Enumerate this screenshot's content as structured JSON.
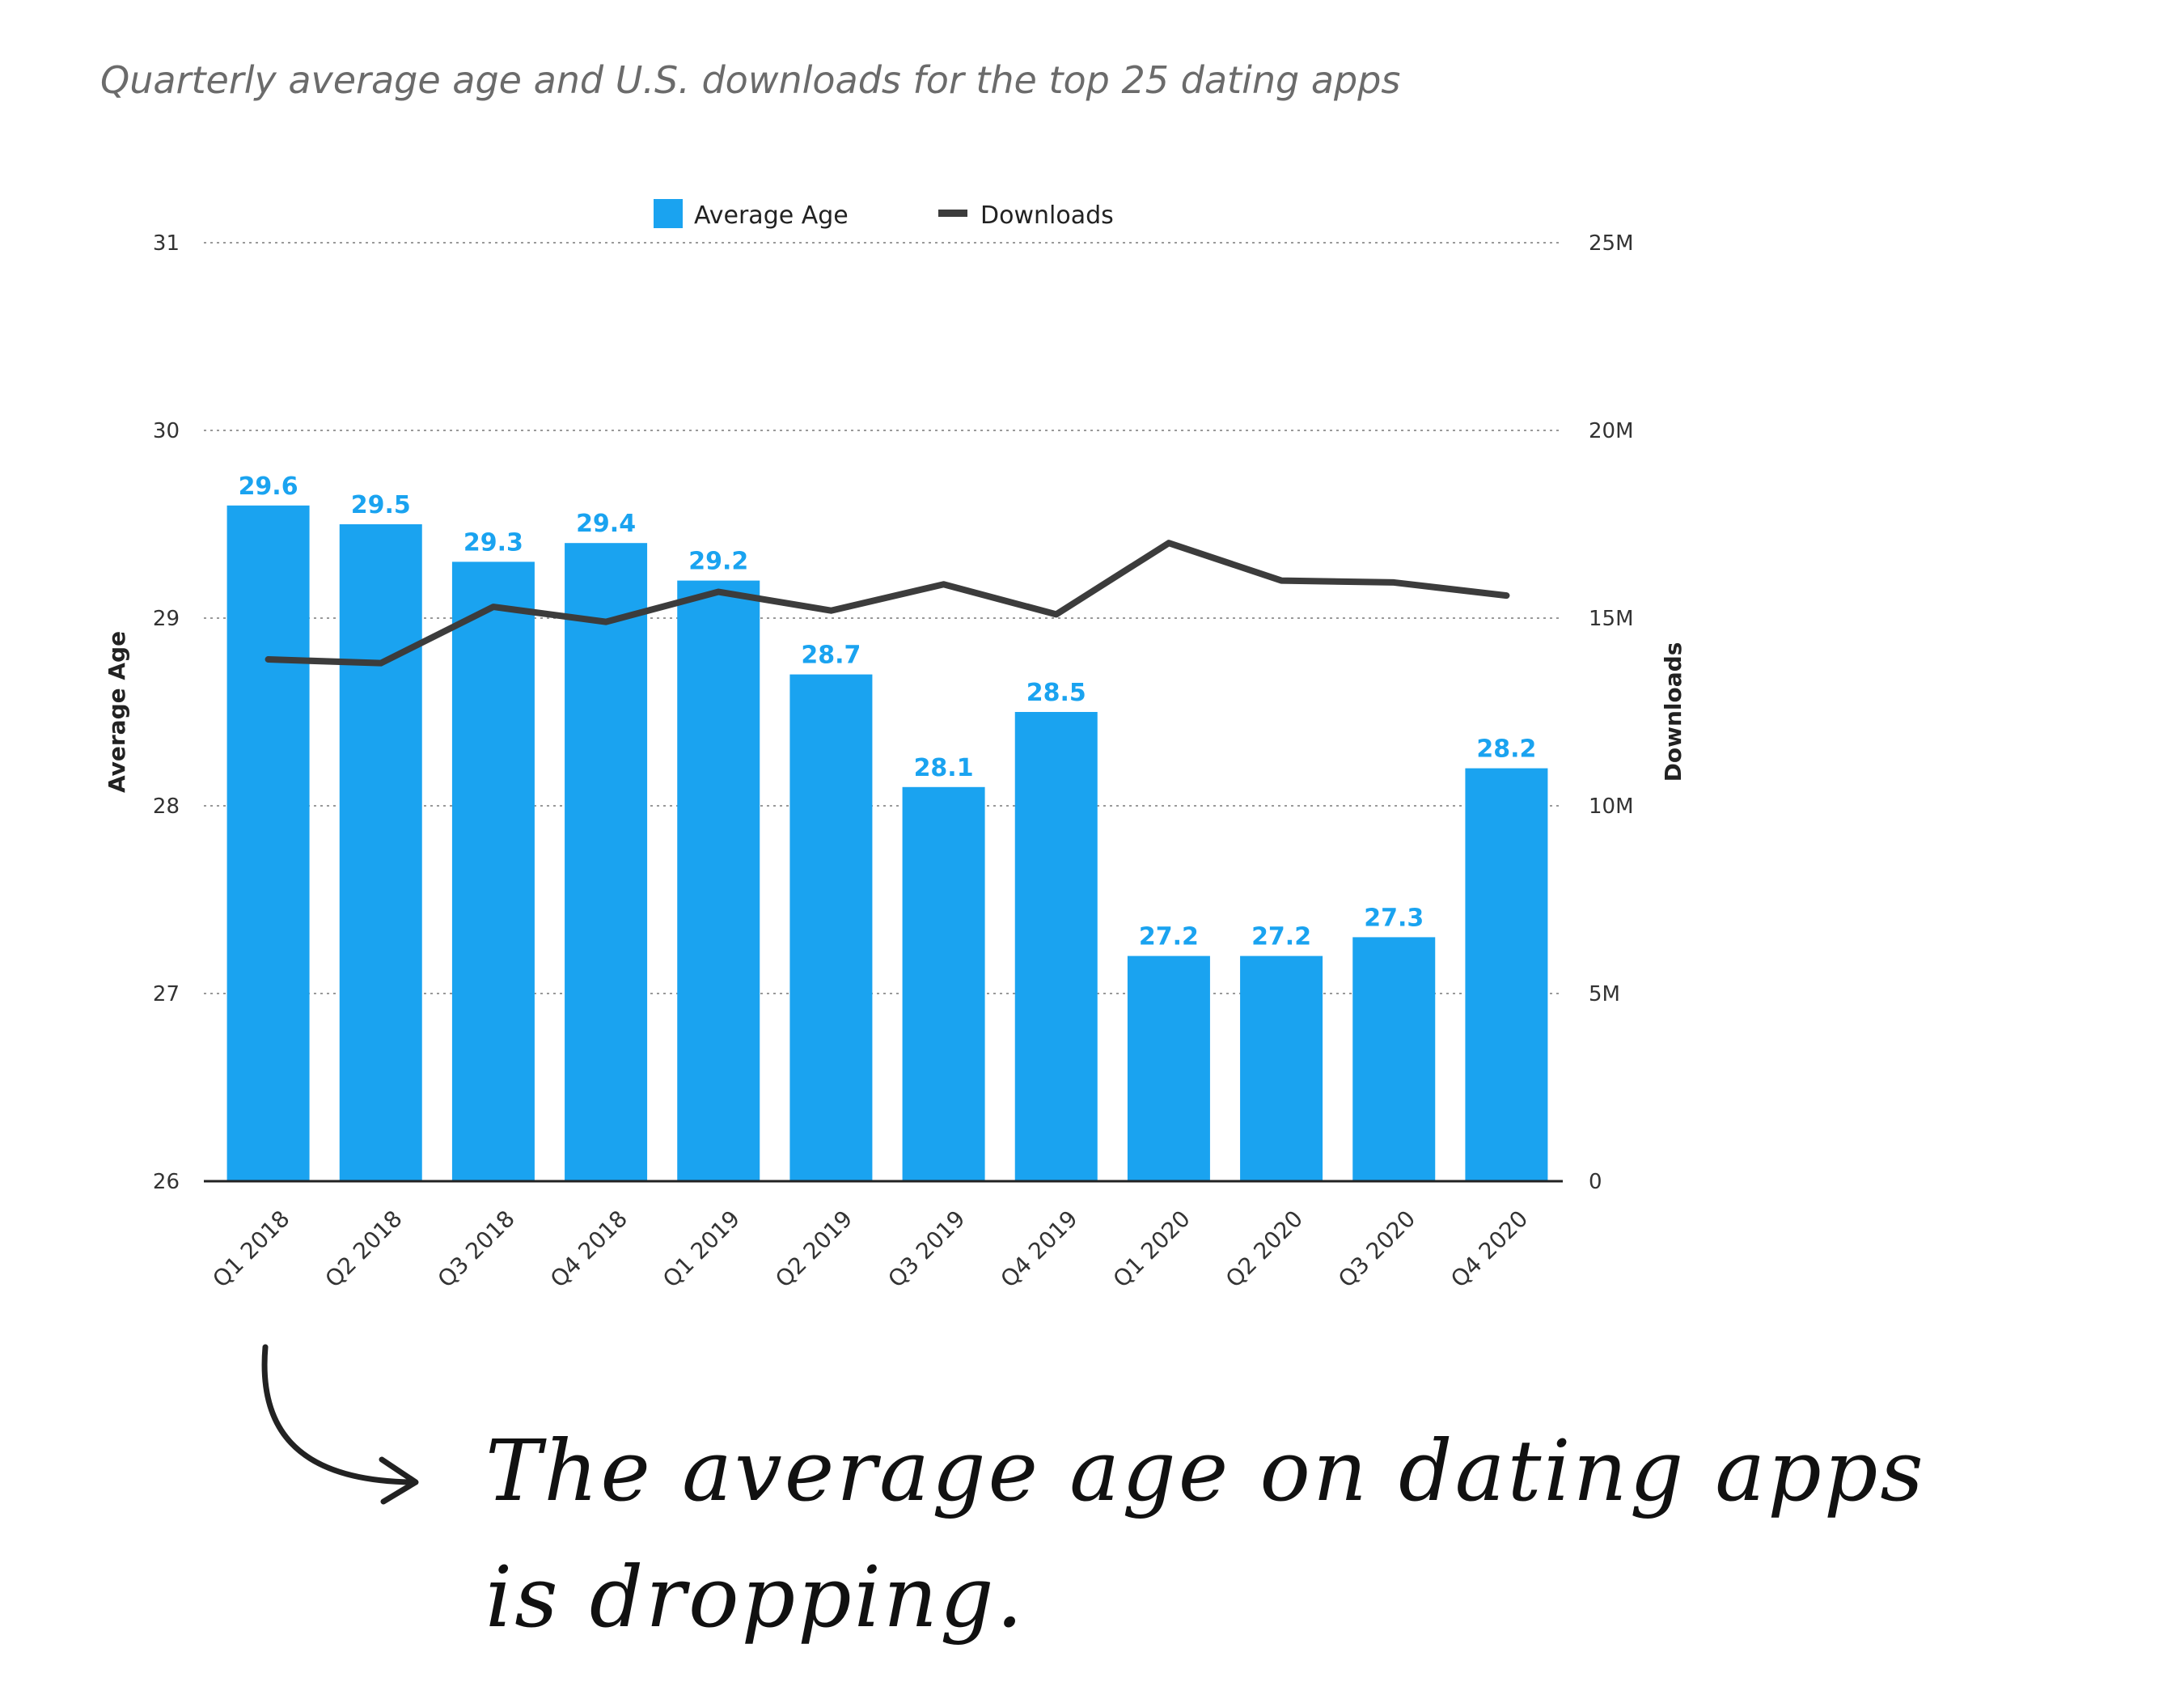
{
  "title": "Quarterly average age and U.S. downloads for the top 25 dating apps",
  "annotation": "The average age on dating apps is dropping.",
  "colors": {
    "bar": "#1aa3f0",
    "line": "#3c3c3c",
    "grid": "#9a9a9a",
    "label": "#1aa3f0"
  },
  "chart_data": {
    "type": "bar",
    "categories": [
      "Q1 2018",
      "Q2 2018",
      "Q3 2018",
      "Q4 2018",
      "Q1 2019",
      "Q2 2019",
      "Q3 2019",
      "Q4 2019",
      "Q1 2020",
      "Q2 2020",
      "Q3 2020",
      "Q4 2020"
    ],
    "series": [
      {
        "name": "Average Age",
        "type": "bar",
        "axis": "left",
        "values": [
          29.6,
          29.5,
          29.3,
          29.4,
          29.2,
          28.7,
          28.1,
          28.5,
          27.2,
          27.2,
          27.3,
          28.2
        ],
        "labels": [
          "29.6",
          "29.5",
          "29.3",
          "29.4",
          "29.2",
          "28.7",
          "28.1",
          "28.5",
          "27.2",
          "27.2",
          "27.3",
          "28.2"
        ]
      },
      {
        "name": "Downloads",
        "type": "line",
        "axis": "right",
        "values": [
          13.9,
          13.8,
          15.3,
          14.9,
          15.7,
          15.2,
          15.9,
          15.1,
          17.0,
          16.0,
          15.95,
          15.6
        ]
      }
    ],
    "y_left": {
      "label": "Average Age",
      "ylim": [
        26,
        31
      ],
      "ticks": [
        "26",
        "27",
        "28",
        "29",
        "30",
        "31"
      ]
    },
    "y_right": {
      "label": "Downloads",
      "ylim": [
        0,
        25
      ],
      "ticks": [
        "0",
        "5M",
        "10M",
        "15M",
        "20M",
        "25M"
      ]
    },
    "grid": true,
    "legend": "top-center"
  }
}
